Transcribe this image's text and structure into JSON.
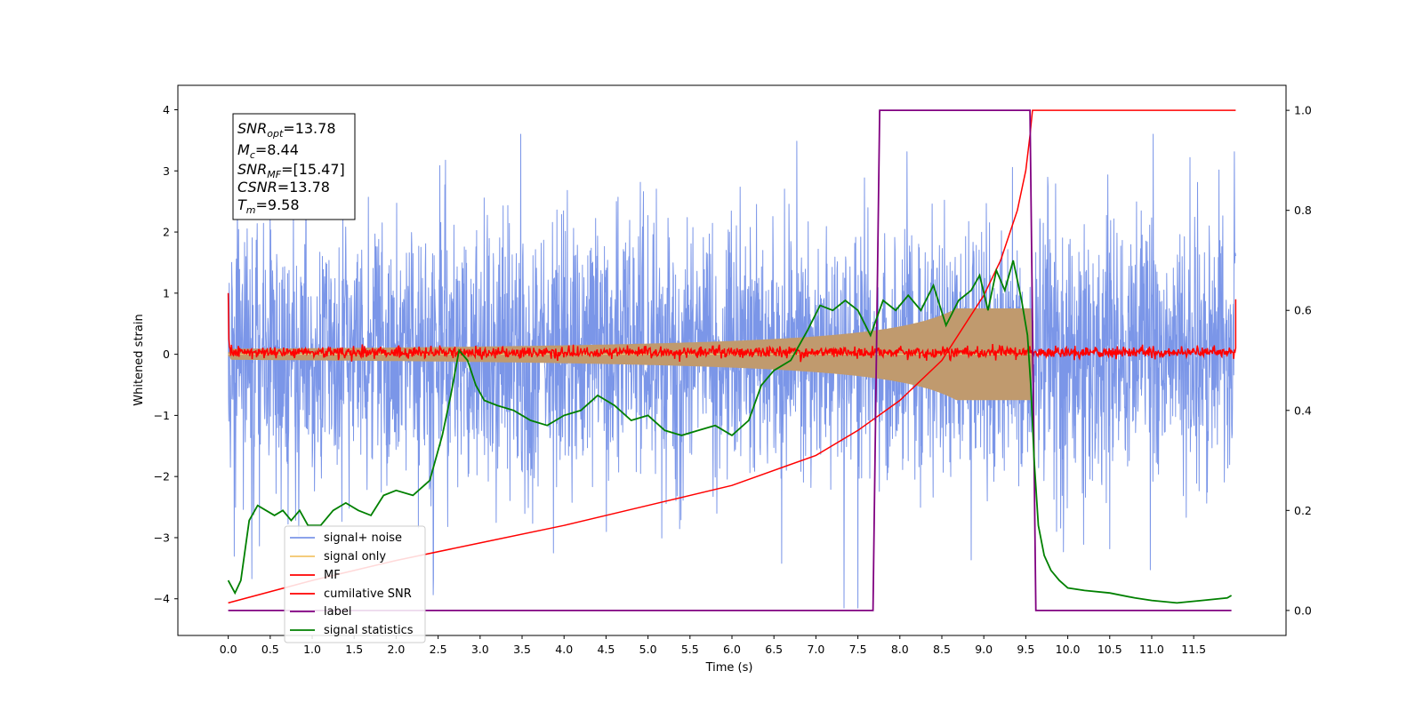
{
  "chart_data": {
    "type": "line",
    "xlabel": "Time (s)",
    "ylabel": "Whitened strain",
    "xlim": [
      -0.6,
      12.6
    ],
    "ylim_left": [
      -4.6,
      4.4
    ],
    "ylim_right": [
      -0.05,
      1.05
    ],
    "x_ticks": [
      0.0,
      0.5,
      1.0,
      1.5,
      2.0,
      2.5,
      3.0,
      3.5,
      4.0,
      4.5,
      5.0,
      5.5,
      6.0,
      6.5,
      7.0,
      7.5,
      8.0,
      8.5,
      9.0,
      9.5,
      10.0,
      10.5,
      11.0,
      11.5
    ],
    "x_tick_labels": [
      "0.0",
      "0.5",
      "1.0",
      "1.5",
      "2.0",
      "2.5",
      "3.0",
      "3.5",
      "4.0",
      "4.5",
      "5.0",
      "5.5",
      "6.0",
      "6.5",
      "7.0",
      "7.5",
      "8.0",
      "8.5",
      "9.0",
      "9.5",
      "10.0",
      "10.5",
      "11.0",
      "11.5"
    ],
    "y_ticks_left": [
      4,
      3,
      2,
      1,
      0,
      -1,
      -2,
      -3,
      -4
    ],
    "y_tick_labels_left": [
      "4",
      "3",
      "2",
      "1",
      "0",
      "−1",
      "−2",
      "−3",
      "−4"
    ],
    "y_ticks_right": [
      1.0,
      0.8,
      0.6,
      0.4,
      0.2,
      0.0
    ],
    "y_tick_labels_right": [
      "1.0",
      "0.8",
      "0.6",
      "0.4",
      "0.2",
      "0.0"
    ],
    "grid": false,
    "legend_position": "lower-left",
    "colors": {
      "signal_noise": "#7b96e8",
      "signal_only": "#f2c46a",
      "signal_fill": "#c09a6e",
      "mf": "#ff0000",
      "cumulative": "#ff0000",
      "label": "#800080",
      "statistics": "#008000"
    },
    "annotation": {
      "snr_opt": {
        "base": "SNR",
        "sub": "opt",
        "value": "=13.78"
      },
      "mc": {
        "base": "M",
        "sub": "c",
        "value": "=8.44"
      },
      "snr_mf": {
        "base": "SNR",
        "sub": "MF",
        "value": "=[15.47]"
      },
      "csnr": {
        "base": "CSNR",
        "sub": "",
        "value": "=13.78"
      },
      "tm": {
        "base": "T",
        "sub": "m",
        "value": "=9.58"
      }
    },
    "series": [
      {
        "name": "signal+ noise",
        "axis": "left",
        "kind": "noise",
        "x_range": [
          0.0,
          12.0
        ],
        "amplitude": 2.8
      },
      {
        "name": "signal only",
        "axis": "left",
        "kind": "chirp",
        "x_range": [
          0.0,
          9.58
        ],
        "amplitude_end": 0.75
      },
      {
        "name": "MF",
        "axis": "left",
        "kind": "matched-filter",
        "x_range": [
          0.0,
          12.0
        ],
        "start_value": 1.0,
        "end_value": 0.9,
        "amplitude": 0.12
      },
      {
        "name": "cumilative SNR",
        "axis": "right",
        "x": [
          0.0,
          1.0,
          2.0,
          3.0,
          4.0,
          5.0,
          6.0,
          7.0,
          7.5,
          8.0,
          8.5,
          9.0,
          9.2,
          9.4,
          9.5,
          9.55,
          9.58,
          12.0
        ],
        "values": [
          0.015,
          0.06,
          0.1,
          0.135,
          0.17,
          0.21,
          0.25,
          0.31,
          0.36,
          0.42,
          0.5,
          0.63,
          0.7,
          0.8,
          0.88,
          0.95,
          1.0,
          1.0
        ]
      },
      {
        "name": "label",
        "axis": "right",
        "x": [
          0.0,
          7.68,
          7.76,
          9.55,
          9.62,
          11.95
        ],
        "values": [
          0.0,
          0.0,
          1.0,
          1.0,
          0.0,
          0.0
        ]
      },
      {
        "name": "signal statistics",
        "axis": "right",
        "x": [
          0.0,
          0.08,
          0.15,
          0.25,
          0.35,
          0.45,
          0.55,
          0.65,
          0.75,
          0.85,
          0.95,
          1.1,
          1.25,
          1.4,
          1.55,
          1.7,
          1.85,
          2.0,
          2.2,
          2.4,
          2.55,
          2.65,
          2.75,
          2.85,
          2.95,
          3.05,
          3.2,
          3.4,
          3.6,
          3.8,
          4.0,
          4.2,
          4.4,
          4.6,
          4.8,
          5.0,
          5.2,
          5.4,
          5.6,
          5.8,
          6.0,
          6.2,
          6.35,
          6.5,
          6.7,
          6.9,
          7.05,
          7.2,
          7.35,
          7.5,
          7.65,
          7.8,
          7.95,
          8.1,
          8.25,
          8.4,
          8.55,
          8.7,
          8.85,
          8.95,
          9.05,
          9.15,
          9.25,
          9.35,
          9.45,
          9.52,
          9.56,
          9.6,
          9.65,
          9.72,
          9.8,
          9.9,
          10.0,
          10.2,
          10.5,
          10.8,
          11.0,
          11.3,
          11.6,
          11.9,
          11.95
        ],
        "values": [
          0.06,
          0.035,
          0.06,
          0.18,
          0.21,
          0.2,
          0.19,
          0.2,
          0.18,
          0.2,
          0.17,
          0.17,
          0.2,
          0.215,
          0.2,
          0.19,
          0.23,
          0.24,
          0.23,
          0.26,
          0.35,
          0.43,
          0.52,
          0.5,
          0.45,
          0.42,
          0.41,
          0.4,
          0.38,
          0.37,
          0.39,
          0.4,
          0.43,
          0.41,
          0.38,
          0.39,
          0.36,
          0.35,
          0.36,
          0.37,
          0.35,
          0.38,
          0.45,
          0.48,
          0.5,
          0.56,
          0.61,
          0.6,
          0.62,
          0.6,
          0.55,
          0.62,
          0.6,
          0.63,
          0.6,
          0.65,
          0.57,
          0.62,
          0.64,
          0.67,
          0.6,
          0.68,
          0.64,
          0.7,
          0.62,
          0.55,
          0.45,
          0.3,
          0.17,
          0.11,
          0.08,
          0.06,
          0.045,
          0.04,
          0.035,
          0.025,
          0.02,
          0.015,
          0.02,
          0.025,
          0.03
        ]
      }
    ]
  }
}
